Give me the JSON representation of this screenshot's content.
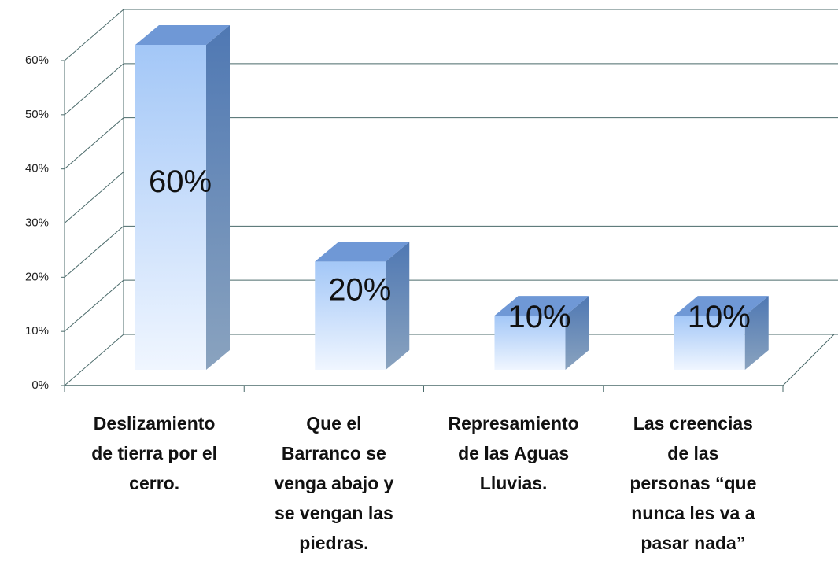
{
  "chart_data": {
    "type": "bar3d",
    "categories": [
      [
        "Deslizamiento",
        "de tierra  por el",
        "cerro."
      ],
      [
        "Que el",
        "Barranco se",
        "venga abajo y",
        "se vengan las",
        "piedras."
      ],
      [
        "Represamiento",
        "de las Aguas",
        "Lluvias."
      ],
      [
        "Las creencias",
        "de las",
        "personas “que",
        "nunca les va a",
        "pasar nada”"
      ]
    ],
    "values": [
      60,
      20,
      10,
      10
    ],
    "value_labels": [
      "60%",
      "20%",
      "10%",
      "10%"
    ],
    "ylim": [
      0,
      60
    ],
    "yticks": [
      {
        "value": 0,
        "label": "0%"
      },
      {
        "value": 10,
        "label": "10%"
      },
      {
        "value": 20,
        "label": "20%"
      },
      {
        "value": 30,
        "label": "30%"
      },
      {
        "value": 40,
        "label": "40%"
      },
      {
        "value": 50,
        "label": "50%"
      },
      {
        "value": 60,
        "label": "60%"
      }
    ],
    "grid": true
  }
}
